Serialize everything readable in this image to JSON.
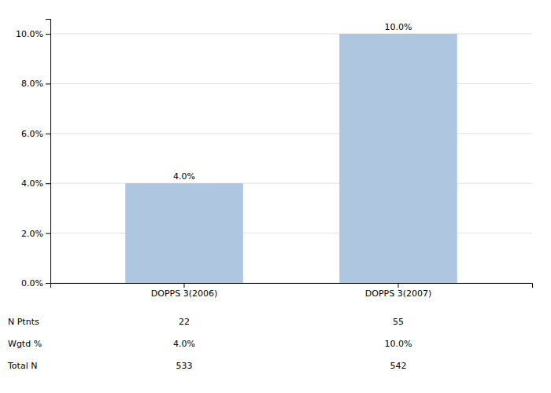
{
  "chart_data": {
    "type": "bar",
    "categories": [
      "DOPPS 3(2006)",
      "DOPPS 3(2007)"
    ],
    "values": [
      4.0,
      10.0
    ],
    "value_labels": [
      "4.0%",
      "10.0%"
    ],
    "data_labels": true,
    "color": "#aec6e0",
    "ylim": [
      0,
      10.6
    ],
    "yticks": [
      {
        "value": 0.0,
        "label": "0.0%"
      },
      {
        "value": 2.0,
        "label": "2.0%"
      },
      {
        "value": 4.0,
        "label": "4.0%"
      },
      {
        "value": 6.0,
        "label": "6.0%"
      },
      {
        "value": 8.0,
        "label": "8.0%"
      },
      {
        "value": 10.0,
        "label": "10.0%"
      }
    ],
    "grid": true,
    "table": {
      "rows": [
        {
          "label": "N Ptnts",
          "values": [
            22,
            55
          ]
        },
        {
          "label": "Wgtd %",
          "values": [
            4.0,
            10.0
          ],
          "value_labels": [
            "4.0%",
            "10.0%"
          ]
        },
        {
          "label": "Total N",
          "values": [
            533,
            542
          ]
        }
      ]
    }
  }
}
